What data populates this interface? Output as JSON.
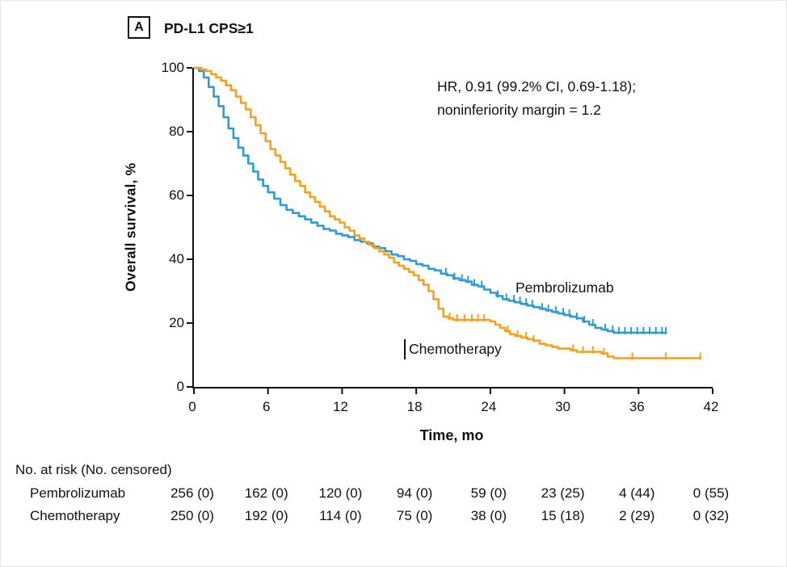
{
  "chart_data": {
    "type": "line",
    "subtype": "kaplan-meier-step",
    "panel_label": "A",
    "title": "PD-L1 CPS≥1",
    "xlabel": "Time, mo",
    "ylabel": "Overall survival, %",
    "xlim": [
      0,
      42
    ],
    "ylim": [
      0,
      100
    ],
    "x_ticks": [
      0,
      6,
      12,
      18,
      24,
      30,
      36,
      42
    ],
    "y_ticks": [
      0,
      20,
      40,
      60,
      80,
      100
    ],
    "grid": false,
    "annotation": [
      "HR, 0.91 (99.2% CI, 0.69-1.18);",
      "noninferiority margin = 1.2"
    ],
    "colors": {
      "pembrolizumab": "#2E9BD6",
      "chemotherapy": "#F5A11B",
      "axis": "#111111"
    },
    "series": [
      {
        "name": "Pembrolizumab",
        "color": "#2E9BD6",
        "points": [
          [
            0,
            100
          ],
          [
            0.4,
            99
          ],
          [
            0.8,
            97
          ],
          [
            1.2,
            94
          ],
          [
            1.6,
            91
          ],
          [
            2,
            88
          ],
          [
            2.4,
            84.5
          ],
          [
            2.8,
            81
          ],
          [
            3.2,
            78
          ],
          [
            3.6,
            75
          ],
          [
            4,
            72.5
          ],
          [
            4.4,
            70
          ],
          [
            4.8,
            67.5
          ],
          [
            5.2,
            65
          ],
          [
            5.6,
            63
          ],
          [
            6,
            61
          ],
          [
            6.5,
            59
          ],
          [
            7,
            57
          ],
          [
            7.5,
            55.5
          ],
          [
            8,
            54.5
          ],
          [
            8.5,
            53.5
          ],
          [
            9,
            52.5
          ],
          [
            9.5,
            51.5
          ],
          [
            10,
            50.5
          ],
          [
            10.5,
            49.5
          ],
          [
            11,
            49
          ],
          [
            11.5,
            48
          ],
          [
            12,
            47.5
          ],
          [
            12.5,
            47
          ],
          [
            13,
            46
          ],
          [
            13.5,
            45.5
          ],
          [
            14,
            45
          ],
          [
            14.5,
            44
          ],
          [
            15,
            43.5
          ],
          [
            15.5,
            42.5
          ],
          [
            16,
            41.5
          ],
          [
            16.5,
            41
          ],
          [
            17,
            40
          ],
          [
            17.5,
            39.5
          ],
          [
            18,
            38.5
          ],
          [
            18.5,
            38
          ],
          [
            19,
            37
          ],
          [
            19.5,
            36.5
          ],
          [
            20,
            35.5
          ],
          [
            20.5,
            35
          ],
          [
            21,
            34
          ],
          [
            21.5,
            33.5
          ],
          [
            22,
            33
          ],
          [
            22.5,
            32
          ],
          [
            23,
            31.5
          ],
          [
            23.5,
            30.5
          ],
          [
            24,
            29.5
          ],
          [
            24.5,
            28.5
          ],
          [
            25,
            27.5
          ],
          [
            25.5,
            27
          ],
          [
            26,
            26.5
          ],
          [
            26.5,
            26
          ],
          [
            27,
            25.5
          ],
          [
            27.5,
            25
          ],
          [
            28,
            24.5
          ],
          [
            28.5,
            24
          ],
          [
            29,
            23.5
          ],
          [
            29.5,
            23
          ],
          [
            30,
            22.5
          ],
          [
            30.5,
            22
          ],
          [
            31,
            21.5
          ],
          [
            31.5,
            20.5
          ],
          [
            32,
            19.5
          ],
          [
            32.5,
            18.5
          ],
          [
            33,
            18
          ],
          [
            33.5,
            17.5
          ],
          [
            34,
            17
          ],
          [
            38.3,
            17
          ]
        ],
        "censor_times": [
          20.4,
          21.1,
          21.7,
          22.2,
          22.7,
          23.3,
          24.6,
          25.3,
          25.9,
          26.4,
          26.9,
          27.4,
          28.2,
          28.7,
          29.3,
          29.9,
          30.4,
          31,
          31.6,
          32.3,
          33.3,
          33.9,
          34.4,
          34.9,
          35.4,
          35.9,
          36.4,
          36.9,
          37.4,
          37.9,
          38.2
        ]
      },
      {
        "name": "Chemotherapy",
        "color": "#F5A11B",
        "points": [
          [
            0,
            100
          ],
          [
            0.6,
            99.5
          ],
          [
            1,
            99
          ],
          [
            1.4,
            98
          ],
          [
            1.8,
            97
          ],
          [
            2.2,
            96
          ],
          [
            2.6,
            94.5
          ],
          [
            3,
            93
          ],
          [
            3.4,
            91
          ],
          [
            3.8,
            89
          ],
          [
            4.2,
            87
          ],
          [
            4.6,
            84.5
          ],
          [
            5,
            82
          ],
          [
            5.4,
            79.5
          ],
          [
            5.8,
            77
          ],
          [
            6.2,
            74.5
          ],
          [
            6.6,
            72.5
          ],
          [
            7,
            70.5
          ],
          [
            7.4,
            68.5
          ],
          [
            7.8,
            66.5
          ],
          [
            8.2,
            64.5
          ],
          [
            8.6,
            63
          ],
          [
            9,
            61
          ],
          [
            9.4,
            59.5
          ],
          [
            9.8,
            58
          ],
          [
            10.2,
            56.5
          ],
          [
            10.6,
            55
          ],
          [
            11,
            53.5
          ],
          [
            11.4,
            52.5
          ],
          [
            11.8,
            51.5
          ],
          [
            12.2,
            50
          ],
          [
            12.6,
            49
          ],
          [
            13,
            47.5
          ],
          [
            13.4,
            46.5
          ],
          [
            13.8,
            45.5
          ],
          [
            14.2,
            44.5
          ],
          [
            14.6,
            43.5
          ],
          [
            15,
            42.5
          ],
          [
            15.4,
            41.5
          ],
          [
            15.8,
            40.5
          ],
          [
            16.2,
            39
          ],
          [
            16.6,
            38
          ],
          [
            17,
            37
          ],
          [
            17.4,
            36
          ],
          [
            17.8,
            35
          ],
          [
            18.2,
            33.5
          ],
          [
            18.6,
            32
          ],
          [
            19,
            30
          ],
          [
            19.4,
            27.5
          ],
          [
            19.8,
            24.5
          ],
          [
            20.2,
            22
          ],
          [
            20.6,
            21.5
          ],
          [
            21,
            21
          ],
          [
            23.6,
            21
          ],
          [
            24,
            20.5
          ],
          [
            24.4,
            19.5
          ],
          [
            24.8,
            18.5
          ],
          [
            25.2,
            17.5
          ],
          [
            25.6,
            16.5
          ],
          [
            26,
            16
          ],
          [
            26.5,
            15.5
          ],
          [
            27,
            15
          ],
          [
            27.5,
            14.5
          ],
          [
            28,
            13.5
          ],
          [
            28.5,
            13
          ],
          [
            29,
            12.5
          ],
          [
            29.5,
            12
          ],
          [
            30.5,
            11.5
          ],
          [
            31,
            11
          ],
          [
            33,
            10.5
          ],
          [
            33.5,
            9.5
          ],
          [
            34,
            9
          ],
          [
            41,
            9
          ]
        ],
        "censor_times": [
          20.7,
          21.3,
          21.9,
          22.5,
          23,
          23.5,
          25.4,
          26.2,
          26.9,
          27.5,
          30.7,
          31.5,
          32.3,
          33.2,
          35.5,
          38.2,
          41
        ]
      }
    ],
    "risk_table": {
      "header": "No. at risk (No. censored)",
      "times": [
        0,
        6,
        12,
        18,
        24,
        30,
        36,
        42
      ],
      "rows": [
        {
          "name": "Pembrolizumab",
          "values": [
            "256 (0)",
            "162 (0)",
            "120 (0)",
            "94 (0)",
            "59 (0)",
            "23 (25)",
            "4 (44)",
            "0 (55)"
          ]
        },
        {
          "name": "Chemotherapy",
          "values": [
            "250 (0)",
            "192 (0)",
            "114 (0)",
            "75 (0)",
            "38 (0)",
            "15 (18)",
            "2 (29)",
            "0 (32)"
          ]
        }
      ]
    }
  }
}
